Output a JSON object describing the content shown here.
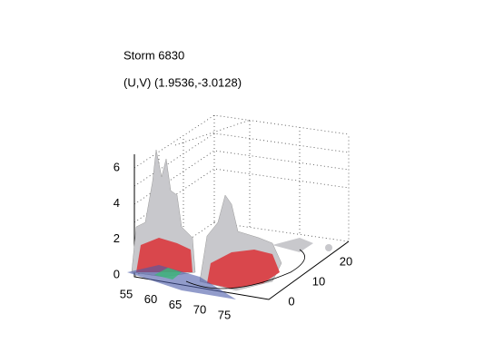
{
  "title": "Storm 6830",
  "subtitle": "(U,V) (1.9536,-3.0128)",
  "axes": {
    "x_ticks": [
      55,
      60,
      65,
      70,
      75
    ],
    "y_ticks": [
      0,
      10,
      20
    ],
    "z_ticks": [
      0,
      2,
      4,
      6
    ]
  }
}
